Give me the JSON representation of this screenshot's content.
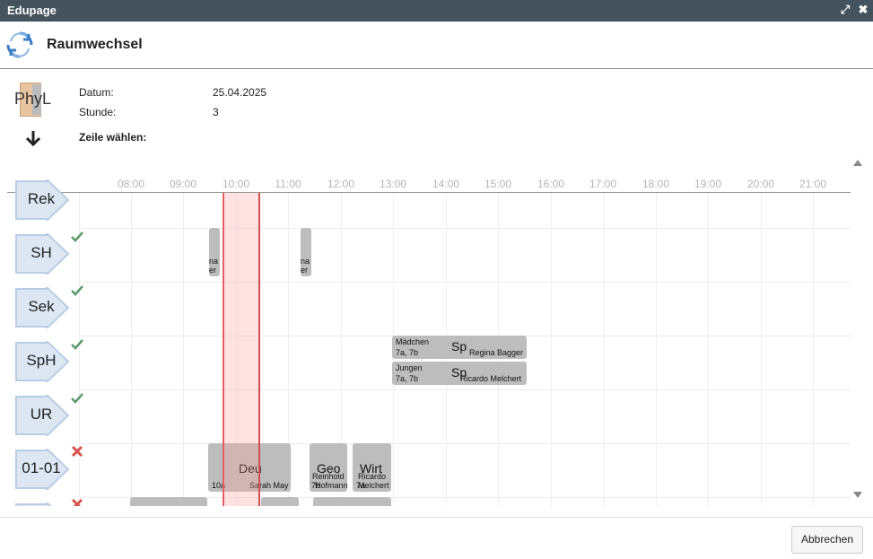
{
  "window": {
    "title": "Edupage"
  },
  "header": {
    "title": "Raumwechsel"
  },
  "room": {
    "code": "PhyL"
  },
  "info": {
    "date_label": "Datum:",
    "date_value": "25.04.2025",
    "period_label": "Stunde:",
    "period_value": "3",
    "select_row_label": "Zeile wählen:"
  },
  "timeline": {
    "ticks": [
      "08:00",
      "09:00",
      "10:00",
      "11:00",
      "12:00",
      "13:00",
      "14:00",
      "15:00",
      "16:00",
      "17:00",
      "18:00",
      "19:00",
      "20:00",
      "21:00"
    ],
    "rows": [
      {
        "name": "Rek",
        "status": "none"
      },
      {
        "name": "SH",
        "status": "ok"
      },
      {
        "name": "Sek",
        "status": "ok"
      },
      {
        "name": "SpH",
        "status": "ok"
      },
      {
        "name": "UR",
        "status": "ok"
      },
      {
        "name": "01-01",
        "status": "conflict"
      }
    ],
    "blocks": {
      "sh1_line1": "na",
      "sh1_line2": "er",
      "sh2_line1": "na",
      "sh2_line2": "er",
      "sph1_group": "Mädchen",
      "sph1_classes": "7a, 7b",
      "sph1_subject": "Sp",
      "sph1_teacher": "Regina Bagger",
      "sph2_group": "Jungen",
      "sph2_classes": "7a, 7b",
      "sph2_subject": "Sp",
      "sph2_teacher": "Ricardo Melchert",
      "r01_deu_subject": "Deu",
      "r01_deu_class": "10a",
      "r01_deu_teacher": "Sarah May",
      "r01_geo_subject": "Geo",
      "r01_geo_teacher1": "Reinhold",
      "r01_geo_teacher2": "Hofmann",
      "r01_geo_class": "7b",
      "r01_wirt_subject": "Wirt",
      "r01_wirt_teacher1": "Ricardo",
      "r01_wirt_teacher2": "Melchert",
      "r01_wirt_class": "7a"
    }
  },
  "footer": {
    "cancel_label": "Abbrechen"
  },
  "colors": {
    "titlebar": "#44535e",
    "ok": "#5a9a6a",
    "conflict": "#d9534f",
    "highlight": "#ffb0b0"
  }
}
